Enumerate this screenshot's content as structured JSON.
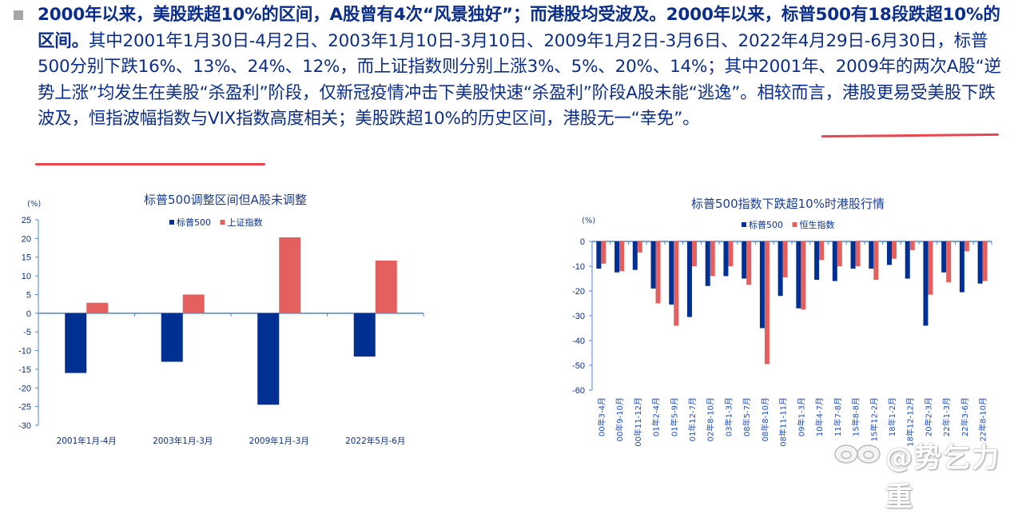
{
  "paragraph": {
    "bold_1": "2000年以来，美股跌超10%的区间，A股曾有4次“风景独好”；而港股均受波及。2000年以来，标普500有18段跌超10%的区间。",
    "normal_1": "其中2001年1月30日-4月2日、2003年1月10日-3月10日、2009年1月2日-3月6日、2022年4月29日-6月30日，标普500分别下跌16%、13%、24%、12%，而上证指数则分别上涨3%、5%、20%、14%；其中2001年、2009年的两次A股“逆势上涨”均发生在美股“杀盈利”阶段，仅新冠疫情冲击下美股快速“杀盈利”阶段A股未能“逃逸”。相较而言，港股更易受美股下跌波及，恒指波幅指数与VIX指数高度相关；",
    "underlined": "美股跌超10%的历史区间，港股无一“幸免”。"
  },
  "colors": {
    "text_blue": "#0b2e8c",
    "bar_blue": "#003091",
    "bar_red": "#e4605e",
    "axis_blue": "#4a86d8",
    "underline_red": "#e8474f"
  },
  "chart_data": [
    {
      "type": "bar",
      "title": "标普500调整区间但A股未调整",
      "ylabel": "(%)",
      "xlabel": "",
      "ylim": [
        -30,
        25
      ],
      "yticks": [
        25,
        20,
        15,
        10,
        5,
        0,
        -5,
        -10,
        -15,
        -20,
        -25,
        -30
      ],
      "legend_position": "top",
      "grid": false,
      "categories": [
        "2001年1月-4月",
        "2003年1月-3月",
        "2009年1月-3月",
        "2022年5月-6月"
      ],
      "series": [
        {
          "name": "标普500",
          "color": "#003091",
          "values": [
            -16,
            -13,
            -24.5,
            -11.6
          ]
        },
        {
          "name": "上证指数",
          "color": "#e4605e",
          "values": [
            2.8,
            5,
            20.3,
            14.1
          ]
        }
      ]
    },
    {
      "type": "bar",
      "title": "标普500指数下跌超10%时港股行情",
      "ylabel": "(%)",
      "xlabel": "",
      "ylim": [
        -60,
        0
      ],
      "yticks": [
        0,
        -10,
        -20,
        -30,
        -40,
        -50,
        -60
      ],
      "legend_position": "top",
      "grid": false,
      "categories": [
        "00年3-4月",
        "00年9-10月",
        "00年11-12月",
        "01年2-4月",
        "01年5-9月",
        "01年12-7月",
        "02年8-10月",
        "03年1-3月",
        "08年5-7月",
        "08年8-10月",
        "08年11-11月",
        "09年1-3月",
        "10年4-7月",
        "11年7-8月",
        "15年8-8月",
        "15年12-2月",
        "18年1-2月",
        "18年12-12月",
        "20年2-3月",
        "22年1-3月",
        "22年3-6月",
        "22年8-10月"
      ],
      "series": [
        {
          "name": "标普500",
          "color": "#003091",
          "values": [
            -11,
            -12.5,
            -11.5,
            -19,
            -25.5,
            -30.5,
            -18,
            -14,
            -15,
            -35,
            -22,
            -27,
            -15.5,
            -16,
            -11,
            -11,
            -9.5,
            -15,
            -34,
            -12.5,
            -20.5,
            -17
          ]
        },
        {
          "name": "恒生指数",
          "color": "#e4605e",
          "values": [
            -9,
            -12,
            -4.5,
            -25,
            -34,
            -10,
            -14,
            -10,
            -17.5,
            -49.5,
            -14.5,
            -27.5,
            -7.5,
            -10,
            -10,
            -15.5,
            -7,
            -3.5,
            -21.5,
            -16.5,
            -4,
            -16
          ]
        }
      ]
    }
  ],
  "watermark": {
    "text": "@势乞力重",
    "icon": "weibo-logo-icon"
  }
}
